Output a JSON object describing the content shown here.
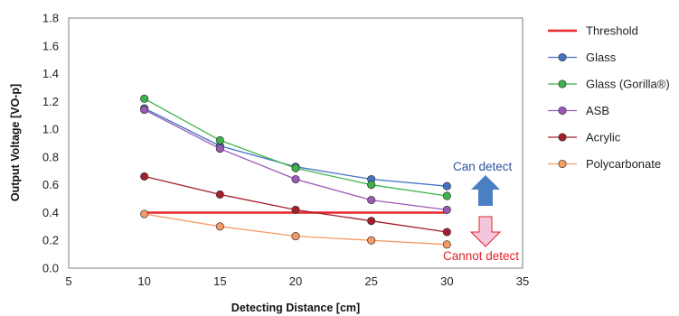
{
  "chart_data": {
    "type": "line",
    "xlabel": "Detecting Distance [cm]",
    "ylabel": "Output Voltage [VO-p]",
    "xlim": [
      5,
      35
    ],
    "ylim": [
      0,
      1.8
    ],
    "x_ticks": [
      5,
      10,
      15,
      20,
      25,
      30,
      35
    ],
    "y_ticks": [
      0.0,
      0.2,
      0.4,
      0.6,
      0.8,
      1.0,
      1.2,
      1.4,
      1.6,
      1.8
    ],
    "x_tick_labels": [
      "5",
      "10",
      "15",
      "20",
      "25",
      "30",
      "35"
    ],
    "y_tick_labels": [
      "0.0",
      "0.2",
      "0.4",
      "0.6",
      "0.8",
      "1.0",
      "1.2",
      "1.4",
      "1.6",
      "1.8"
    ],
    "grid": false,
    "legend_position": "right",
    "threshold": {
      "name": "Threshold",
      "value": 0.4,
      "x": [
        10,
        30
      ],
      "color": "#e8262b"
    },
    "series": [
      {
        "name": "Glass",
        "color": "#4472c4",
        "x": [
          10,
          15,
          20,
          25,
          30
        ],
        "values": [
          1.15,
          0.88,
          0.73,
          0.64,
          0.59
        ]
      },
      {
        "name": "Glass (Gorilla®)",
        "color": "#3cb44b",
        "x": [
          10,
          15,
          20,
          25,
          30
        ],
        "values": [
          1.22,
          0.92,
          0.72,
          0.6,
          0.52
        ]
      },
      {
        "name": "ASB",
        "color": "#9b59b6",
        "x": [
          10,
          15,
          20,
          25,
          30
        ],
        "values": [
          1.14,
          0.86,
          0.64,
          0.49,
          0.42
        ]
      },
      {
        "name": "Acrylic",
        "color": "#a31f2b",
        "x": [
          10,
          15,
          20,
          25,
          30
        ],
        "values": [
          0.66,
          0.53,
          0.42,
          0.34,
          0.26
        ]
      },
      {
        "name": "Polycarbonate",
        "color": "#f79a63",
        "x": [
          10,
          15,
          20,
          25,
          30
        ],
        "values": [
          0.39,
          0.3,
          0.23,
          0.2,
          0.17
        ]
      }
    ],
    "annotations": {
      "can_detect": "Can detect",
      "cannot_detect": "Cannot detect",
      "up_arrow_color": "#4a7fc1",
      "down_arrow_color": "#f4c6dc"
    }
  }
}
